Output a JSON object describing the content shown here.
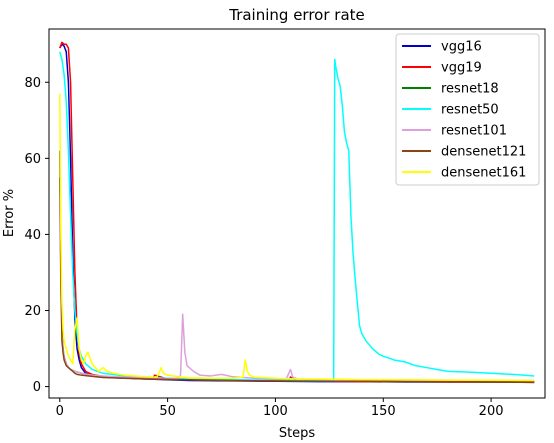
{
  "chart_data": {
    "type": "line",
    "title": "Training error rate",
    "xlabel": "Steps",
    "ylabel": "Error %",
    "xlim": [
      -5,
      225
    ],
    "ylim": [
      -3,
      94
    ],
    "xticks": [
      0,
      50,
      100,
      150,
      200
    ],
    "yticks": [
      0,
      20,
      40,
      60,
      80
    ],
    "grid": false,
    "legend_position": "top-right",
    "series": [
      {
        "name": "vgg16",
        "color": "#0000cc",
        "x": [
          0,
          1,
          2,
          3,
          4,
          5,
          6,
          7,
          8,
          9,
          10,
          12,
          15,
          20,
          30,
          40,
          50,
          60,
          80,
          100,
          120,
          140,
          160,
          180,
          200,
          220
        ],
        "y": [
          89,
          90,
          89.5,
          88,
          80,
          60,
          35,
          18,
          10,
          7,
          5,
          3.5,
          3,
          2.5,
          2.2,
          2,
          1.8,
          1.6,
          1.5,
          1.4,
          1.3,
          1.3,
          1.2,
          1.2,
          1.2,
          1.1
        ]
      },
      {
        "name": "vgg19",
        "color": "#ff0000",
        "x": [
          0,
          1,
          2,
          3,
          4,
          5,
          6,
          7,
          8,
          9,
          10,
          12,
          15,
          20,
          30,
          40,
          43,
          44,
          50,
          60,
          80,
          100,
          106,
          107,
          110,
          120,
          140,
          160,
          180,
          200,
          220
        ],
        "y": [
          89,
          90.5,
          90,
          90,
          89,
          80,
          55,
          30,
          15,
          9,
          6,
          4,
          3.2,
          2.7,
          2.3,
          2.1,
          2.1,
          3,
          2,
          1.8,
          1.6,
          1.5,
          1.5,
          2.5,
          1.5,
          1.4,
          1.3,
          1.3,
          1.2,
          1.2,
          1.1
        ]
      },
      {
        "name": "resnet18",
        "color": "#008000",
        "x": [
          0,
          0.5,
          1,
          1.5,
          2,
          3,
          4,
          5,
          7,
          10,
          15,
          20,
          30,
          40,
          50,
          60,
          80,
          100,
          120,
          140,
          160,
          180,
          200,
          220
        ],
        "y": [
          55,
          30,
          15,
          10,
          8,
          6,
          5,
          4.5,
          4,
          3.5,
          3,
          2.6,
          2.3,
          2.1,
          1.9,
          1.8,
          1.6,
          1.5,
          1.4,
          1.4,
          1.3,
          1.3,
          1.2,
          1.2
        ]
      },
      {
        "name": "resnet50",
        "color": "#00ffff",
        "x": [
          0,
          1,
          2,
          3,
          4,
          5,
          6,
          7,
          8,
          9,
          10,
          12,
          15,
          20,
          30,
          40,
          50,
          60,
          80,
          100,
          110,
          120,
          125,
          127,
          127.5,
          128,
          129,
          130,
          131,
          132,
          133,
          134,
          135,
          136,
          137,
          138,
          139,
          140,
          142,
          145,
          148,
          150,
          155,
          160,
          165,
          170,
          175,
          180,
          190,
          200,
          210,
          215,
          220
        ],
        "y": [
          88,
          86,
          82,
          75,
          62,
          45,
          30,
          20,
          14,
          10,
          8,
          6,
          4.5,
          3.5,
          2.8,
          2.5,
          2.2,
          2,
          1.8,
          1.7,
          1.6,
          1.6,
          1.5,
          1.5,
          86,
          84,
          81,
          79,
          74,
          67,
          64,
          62,
          45,
          35,
          28,
          22,
          16,
          14,
          12,
          10,
          8.5,
          8,
          7,
          6.5,
          5.5,
          5,
          4.5,
          4,
          3.8,
          3.5,
          3.2,
          3,
          2.8
        ]
      },
      {
        "name": "resnet101",
        "color": "#dda0dd",
        "x": [
          0,
          0.5,
          1,
          1.5,
          2,
          3,
          4,
          5,
          7,
          10,
          15,
          20,
          30,
          40,
          50,
          55,
          56,
          57,
          58,
          59,
          60,
          62,
          65,
          70,
          75,
          80,
          90,
          100,
          105,
          107,
          108,
          110,
          120,
          140,
          160,
          180,
          200,
          220
        ],
        "y": [
          50,
          25,
          14,
          10,
          8,
          6,
          5,
          4.5,
          4,
          3.5,
          3,
          2.8,
          2.5,
          2.3,
          2.1,
          2.2,
          3,
          19,
          9,
          5.5,
          5,
          4,
          3,
          2.8,
          3.2,
          2.6,
          2.2,
          2,
          2,
          4.5,
          2.5,
          2,
          1.9,
          1.8,
          1.7,
          1.7,
          1.6,
          1.6
        ]
      },
      {
        "name": "densenet121",
        "color": "#8b4513",
        "x": [
          0,
          0.5,
          1,
          1.5,
          2,
          3,
          4,
          5,
          6,
          7,
          8,
          10,
          15,
          20,
          30,
          40,
          50,
          60,
          80,
          100,
          120,
          140,
          160,
          180,
          200,
          220
        ],
        "y": [
          62,
          30,
          12,
          9,
          7,
          5.5,
          5,
          4.5,
          4,
          3.5,
          3.2,
          3,
          2.7,
          2.4,
          2.2,
          2,
          1.9,
          1.8,
          1.6,
          1.5,
          1.4,
          1.4,
          1.3,
          1.3,
          1.2,
          1.2
        ]
      },
      {
        "name": "densenet161",
        "color": "#ffff00",
        "x": [
          0,
          0.5,
          1,
          1.5,
          2,
          3,
          4,
          5,
          6,
          7,
          8,
          9,
          10,
          11,
          12,
          13,
          15,
          18,
          20,
          22,
          25,
          30,
          35,
          40,
          45,
          46,
          47,
          48,
          50,
          55,
          60,
          70,
          80,
          85,
          86,
          87,
          88,
          90,
          100,
          110,
          120,
          130,
          140,
          160,
          180,
          200,
          220
        ],
        "y": [
          77,
          40,
          22,
          15,
          12,
          10,
          8,
          7,
          6,
          15,
          18,
          10,
          7,
          6,
          8,
          9,
          6,
          4,
          5,
          4,
          3.5,
          3,
          2.8,
          2.6,
          2.5,
          3.5,
          5,
          3.5,
          3,
          2.6,
          2.3,
          2.2,
          2.2,
          2.5,
          7,
          4,
          3,
          2.5,
          2.2,
          2,
          2,
          1.9,
          1.8,
          1.8,
          1.7,
          1.7,
          1.6
        ]
      }
    ]
  }
}
